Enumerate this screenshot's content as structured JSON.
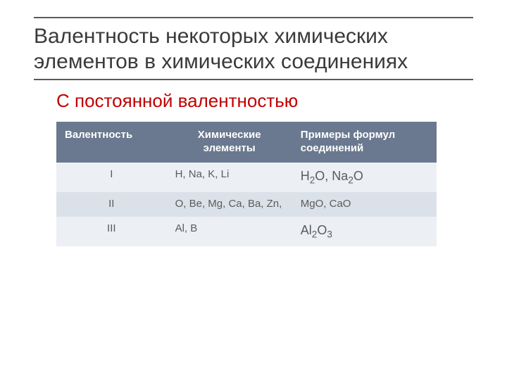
{
  "title": "Валентность некоторых химических элементов в химических соединениях",
  "subtitle": "С постоянной валентностью",
  "subtitle_color": "#c00000",
  "table": {
    "header_bg": "#6a798f",
    "header_fg": "#ffffff",
    "row_colors": [
      "#eceff3",
      "#dbe1e8",
      "#eceff3"
    ],
    "cell_fg": "#5b5b5b",
    "columns": [
      {
        "label": "Валентность",
        "width": "29%",
        "align": "left"
      },
      {
        "label": "Химические элементы",
        "width": "33%",
        "align": "center"
      },
      {
        "label": "Примеры формул соединений",
        "width": "38%",
        "align": "left"
      }
    ],
    "rows": [
      {
        "valency": "I",
        "elements": "H, Na, K, Li",
        "examples_html": "H<span class=\"sub\">2</span>O, Na<span class=\"sub\">2</span>O",
        "example_size": "18px"
      },
      {
        "valency": "II",
        "elements": "O, Be, Mg, Ca, Ba, Zn,",
        "examples_html": "MgO, CaO",
        "example_size": "15px"
      },
      {
        "valency": "III",
        "elements": "Al, B",
        "examples_html": "Al<span class=\"sub\">2</span>O<span class=\"sub\">3</span>",
        "example_size": "18px"
      }
    ]
  }
}
